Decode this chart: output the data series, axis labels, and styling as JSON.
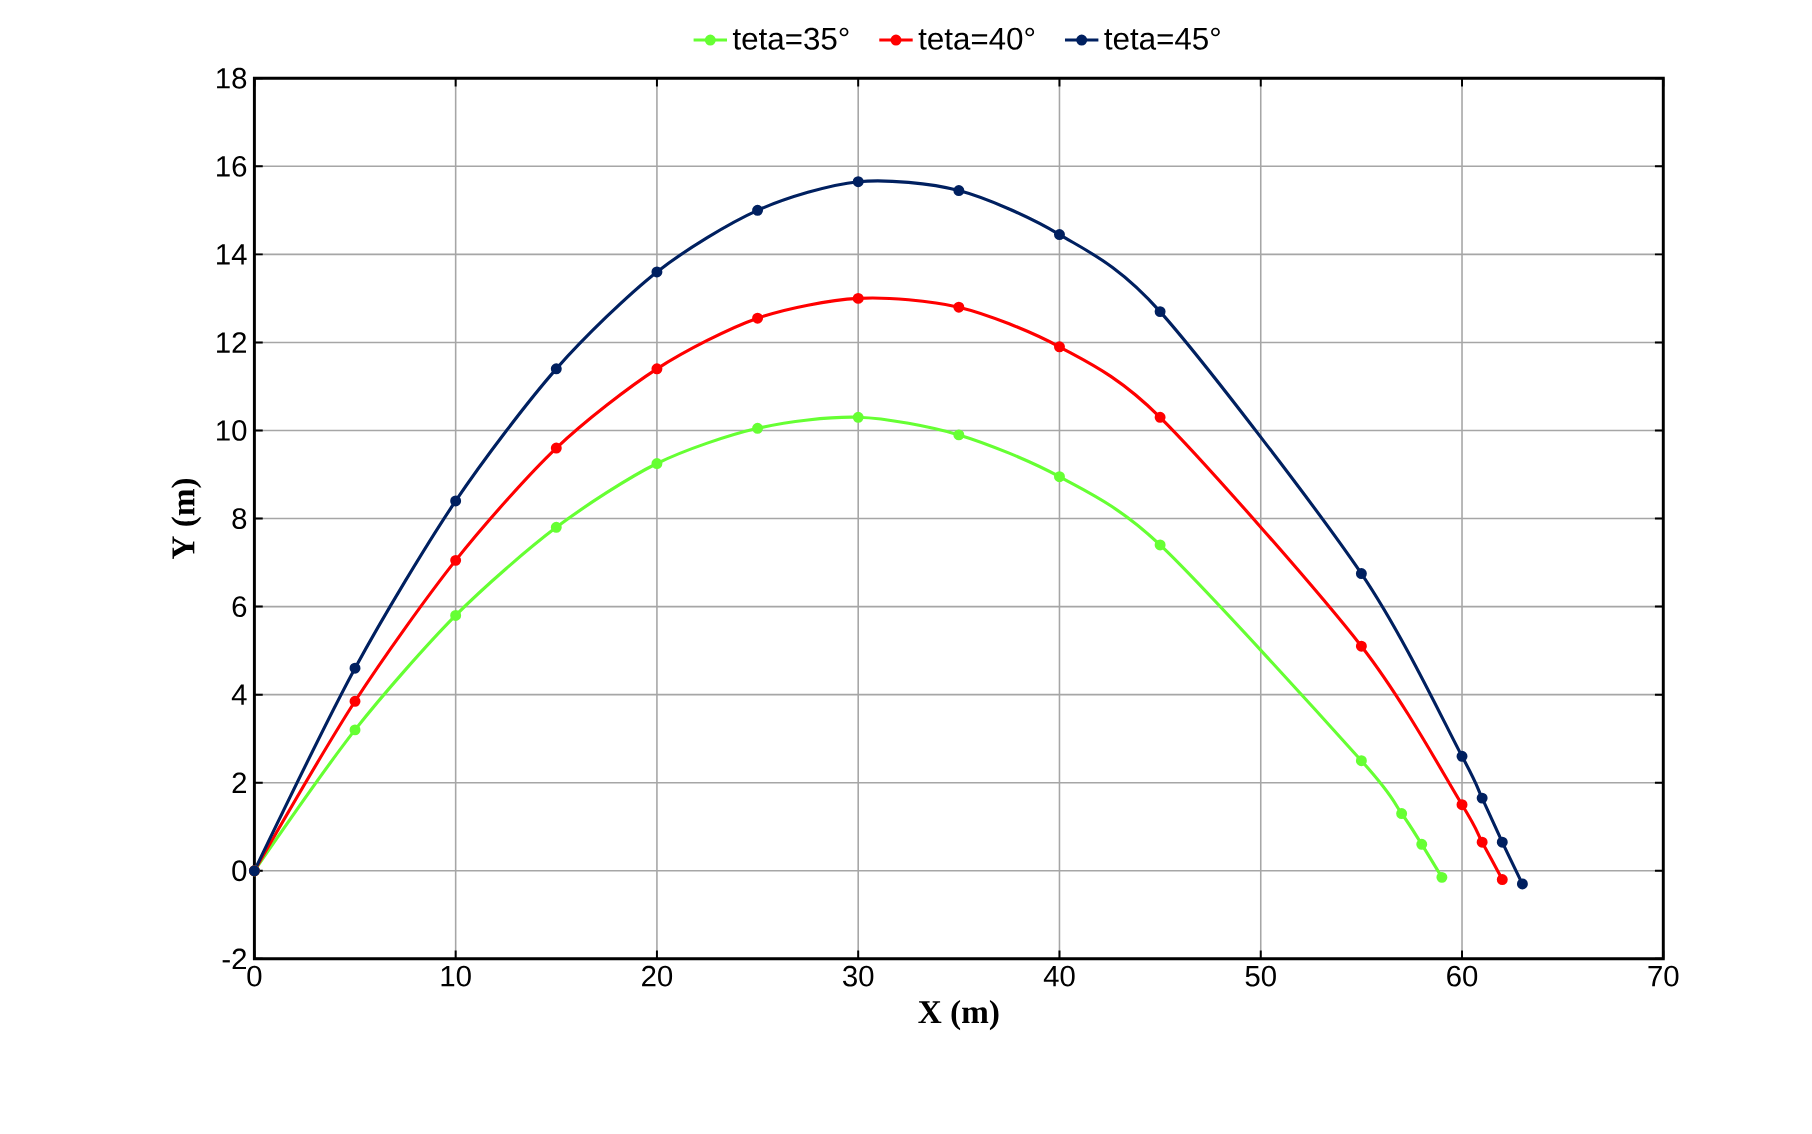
{
  "chart_data": {
    "type": "line",
    "xlabel": "X (m)",
    "ylabel": "Y (m)",
    "xlim": [
      0,
      70
    ],
    "ylim": [
      -2,
      18
    ],
    "xticks": [
      0,
      10,
      20,
      30,
      40,
      50,
      60,
      70
    ],
    "yticks": [
      -2,
      0,
      2,
      4,
      6,
      8,
      10,
      12,
      14,
      16,
      18
    ],
    "grid": true,
    "legend": "top",
    "marker": "circle",
    "line_style": "solid",
    "series": [
      {
        "name": "teta=35°",
        "color": "#66ff33",
        "x": [
          0,
          5,
          10,
          15,
          20,
          25,
          30,
          35,
          40,
          45,
          55,
          57,
          58,
          59
        ],
        "values": [
          0,
          3.2,
          5.8,
          7.8,
          9.25,
          10.05,
          10.3,
          9.9,
          8.95,
          7.4,
          2.5,
          1.3,
          0.6,
          -0.15
        ]
      },
      {
        "name": "teta=40°",
        "color": "#ff0000",
        "x": [
          0,
          5,
          10,
          15,
          20,
          25,
          30,
          35,
          40,
          45,
          55,
          60,
          61,
          62
        ],
        "values": [
          0,
          3.85,
          7.05,
          9.6,
          11.4,
          12.55,
          13.0,
          12.8,
          11.9,
          10.3,
          5.1,
          1.5,
          0.65,
          -0.2
        ]
      },
      {
        "name": "teta=45°",
        "color": "#002060",
        "x": [
          0,
          5,
          10,
          15,
          20,
          25,
          30,
          35,
          40,
          45,
          55,
          60,
          61,
          62,
          63
        ],
        "values": [
          0,
          4.6,
          8.4,
          11.4,
          13.6,
          15.0,
          15.65,
          15.45,
          14.45,
          12.7,
          6.75,
          2.6,
          1.65,
          0.65,
          -0.3
        ]
      }
    ]
  }
}
